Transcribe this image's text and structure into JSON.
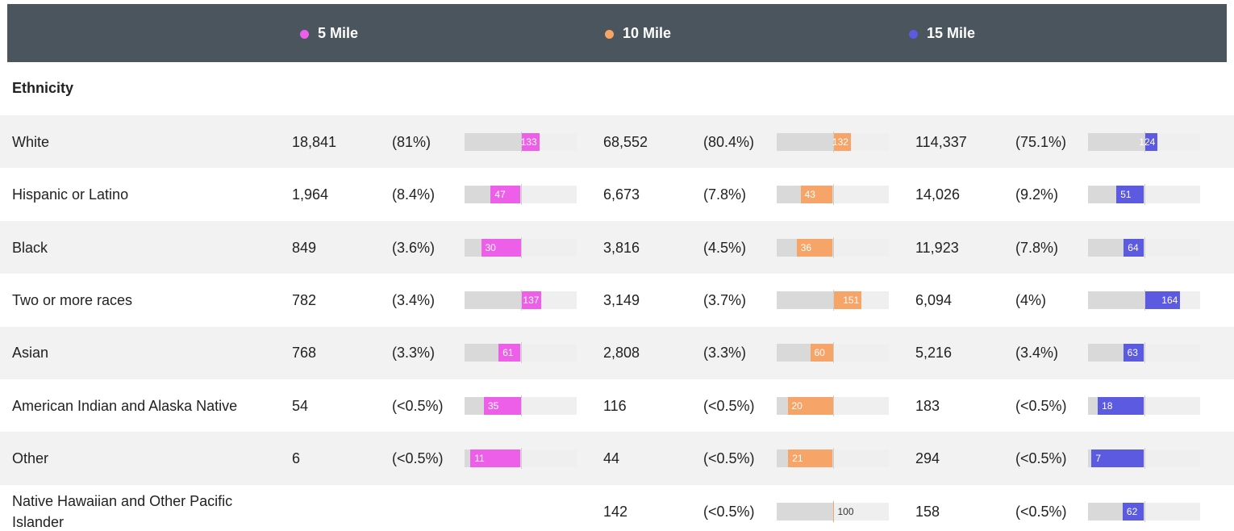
{
  "header": {
    "columns": [
      {
        "name": "5 Mile",
        "color": "#ee5fe9"
      },
      {
        "name": "10 Mile",
        "color": "#f7a468"
      },
      {
        "name": "15 Mile",
        "color": "#5b5ae0"
      }
    ]
  },
  "section": "Ethnicity",
  "rows": [
    {
      "label": "White",
      "cells": [
        {
          "count": "18,841",
          "share": "(81%)",
          "index": 133
        },
        {
          "count": "68,552",
          "share": "(80.4%)",
          "index": 132
        },
        {
          "count": "114,337",
          "share": "(75.1%)",
          "index": 124
        }
      ]
    },
    {
      "label": "Hispanic or Latino",
      "cells": [
        {
          "count": "1,964",
          "share": "(8.4%)",
          "index": 47
        },
        {
          "count": "6,673",
          "share": "(7.8%)",
          "index": 43
        },
        {
          "count": "14,026",
          "share": "(9.2%)",
          "index": 51
        }
      ]
    },
    {
      "label": "Black",
      "cells": [
        {
          "count": "849",
          "share": "(3.6%)",
          "index": 30
        },
        {
          "count": "3,816",
          "share": "(4.5%)",
          "index": 36
        },
        {
          "count": "11,923",
          "share": "(7.8%)",
          "index": 64
        }
      ]
    },
    {
      "label": "Two or more races",
      "cells": [
        {
          "count": "782",
          "share": "(3.4%)",
          "index": 137
        },
        {
          "count": "3,149",
          "share": "(3.7%)",
          "index": 151
        },
        {
          "count": "6,094",
          "share": "(4%)",
          "index": 164
        }
      ]
    },
    {
      "label": "Asian",
      "cells": [
        {
          "count": "768",
          "share": "(3.3%)",
          "index": 61
        },
        {
          "count": "2,808",
          "share": "(3.3%)",
          "index": 60
        },
        {
          "count": "5,216",
          "share": "(3.4%)",
          "index": 63
        }
      ]
    },
    {
      "label": "American Indian and Alaska Native",
      "cells": [
        {
          "count": "54",
          "share": "(<0.5%)",
          "index": 35
        },
        {
          "count": "116",
          "share": "(<0.5%)",
          "index": 20
        },
        {
          "count": "183",
          "share": "(<0.5%)",
          "index": 18
        }
      ]
    },
    {
      "label": "Other",
      "cells": [
        {
          "count": "6",
          "share": "(<0.5%)",
          "index": 11
        },
        {
          "count": "44",
          "share": "(<0.5%)",
          "index": 21
        },
        {
          "count": "294",
          "share": "(<0.5%)",
          "index": 7
        }
      ]
    },
    {
      "label": "Native Hawaiian and Other Pacific Islander",
      "cells": [
        null,
        {
          "count": "142",
          "share": "(<0.5%)",
          "index": 100
        },
        {
          "count": "158",
          "share": "(<0.5%)",
          "index": 62
        }
      ]
    }
  ]
}
